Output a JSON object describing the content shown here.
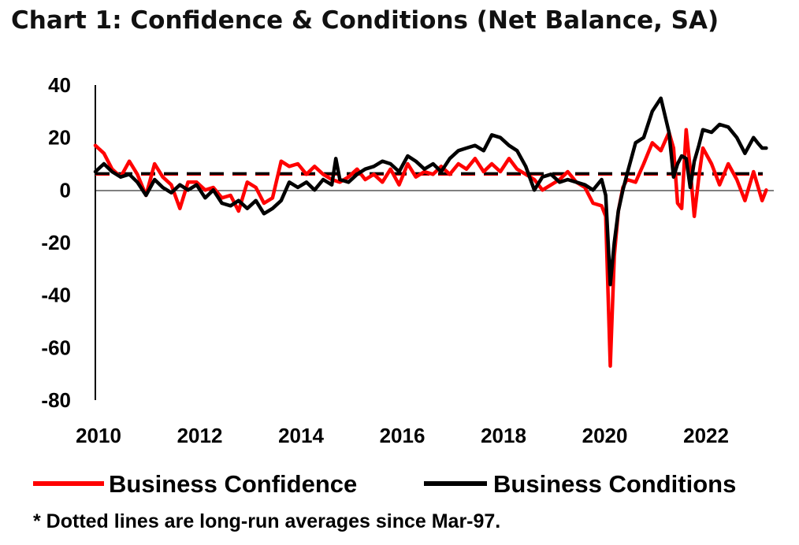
{
  "chart_data": {
    "type": "line",
    "title": "Chart 1: Confidence & Conditions (Net Balance, SA)",
    "footnote": "* Dotted lines are long-run averages since Mar-97.",
    "xlim": [
      2010,
      2023.4
    ],
    "ylim": [
      -80,
      40
    ],
    "y_ticks": [
      "40",
      "20",
      "0",
      "-20",
      "-40",
      "-60",
      "-80"
    ],
    "x_ticks": [
      "2010",
      "2012",
      "2014",
      "2016",
      "2018",
      "2020",
      "2022"
    ],
    "grid": false,
    "legend_position": "bottom",
    "series": [
      {
        "name": "Business Confidence",
        "color": "#ff0000",
        "long_run_average": 6,
        "x": [
          2010.0,
          2010.17,
          2010.33,
          2010.5,
          2010.67,
          2010.83,
          2011.0,
          2011.17,
          2011.33,
          2011.5,
          2011.67,
          2011.83,
          2012.0,
          2012.17,
          2012.33,
          2012.5,
          2012.67,
          2012.83,
          2013.0,
          2013.17,
          2013.33,
          2013.5,
          2013.67,
          2013.83,
          2014.0,
          2014.17,
          2014.33,
          2014.5,
          2014.67,
          2014.83,
          2015.0,
          2015.17,
          2015.33,
          2015.5,
          2015.67,
          2015.83,
          2016.0,
          2016.17,
          2016.33,
          2016.5,
          2016.67,
          2016.83,
          2017.0,
          2017.17,
          2017.33,
          2017.5,
          2017.67,
          2017.83,
          2018.0,
          2018.17,
          2018.33,
          2018.5,
          2018.67,
          2018.83,
          2019.0,
          2019.17,
          2019.33,
          2019.5,
          2019.67,
          2019.83,
          2020.0,
          2020.08,
          2020.17,
          2020.25,
          2020.33,
          2020.42,
          2020.5,
          2020.67,
          2020.83,
          2021.0,
          2021.17,
          2021.33,
          2021.42,
          2021.5,
          2021.58,
          2021.67,
          2021.75,
          2021.83,
          2021.92,
          2022.0,
          2022.17,
          2022.33,
          2022.5,
          2022.67,
          2022.83,
          2023.0,
          2023.17,
          2023.25
        ],
        "values": [
          17,
          14,
          8,
          5,
          11,
          6,
          -2,
          10,
          5,
          2,
          -7,
          3,
          3,
          0,
          1,
          -3,
          -2,
          -8,
          3,
          1,
          -5,
          -3,
          11,
          9,
          10,
          6,
          9,
          6,
          4,
          3,
          5,
          8,
          4,
          6,
          3,
          8,
          2,
          10,
          5,
          7,
          6,
          9,
          6,
          10,
          8,
          12,
          7,
          10,
          7,
          12,
          8,
          6,
          4,
          0,
          2,
          4,
          7,
          3,
          1,
          -5,
          -6,
          -10,
          -67,
          -25,
          -8,
          1,
          4,
          3,
          10,
          18,
          15,
          22,
          16,
          -5,
          -7,
          23,
          8,
          -10,
          5,
          16,
          10,
          2,
          10,
          4,
          -4,
          7,
          -4,
          0
        ]
      },
      {
        "name": "Business Conditions",
        "color": "#000000",
        "long_run_average": 6,
        "x": [
          2010.0,
          2010.17,
          2010.33,
          2010.5,
          2010.67,
          2010.83,
          2011.0,
          2011.17,
          2011.33,
          2011.5,
          2011.67,
          2011.83,
          2012.0,
          2012.17,
          2012.33,
          2012.5,
          2012.67,
          2012.83,
          2013.0,
          2013.17,
          2013.33,
          2013.5,
          2013.67,
          2013.83,
          2014.0,
          2014.17,
          2014.33,
          2014.5,
          2014.67,
          2014.75,
          2014.83,
          2015.0,
          2015.17,
          2015.33,
          2015.5,
          2015.67,
          2015.83,
          2016.0,
          2016.17,
          2016.33,
          2016.5,
          2016.67,
          2016.83,
          2017.0,
          2017.17,
          2017.33,
          2017.5,
          2017.67,
          2017.83,
          2018.0,
          2018.17,
          2018.33,
          2018.5,
          2018.67,
          2018.83,
          2019.0,
          2019.17,
          2019.33,
          2019.5,
          2019.67,
          2019.83,
          2020.0,
          2020.08,
          2020.17,
          2020.25,
          2020.33,
          2020.42,
          2020.5,
          2020.67,
          2020.83,
          2021.0,
          2021.17,
          2021.33,
          2021.42,
          2021.5,
          2021.58,
          2021.67,
          2021.75,
          2021.83,
          2021.92,
          2022.0,
          2022.17,
          2022.33,
          2022.5,
          2022.67,
          2022.83,
          2023.0,
          2023.08,
          2023.17,
          2023.25
        ],
        "values": [
          7,
          10,
          7,
          5,
          6,
          3,
          -2,
          4,
          1,
          -1,
          2,
          0,
          2,
          -3,
          0,
          -5,
          -6,
          -4,
          -7,
          -4,
          -9,
          -7,
          -4,
          3,
          1,
          3,
          0,
          4,
          2,
          12,
          4,
          3,
          6,
          8,
          9,
          11,
          10,
          7,
          13,
          11,
          8,
          10,
          7,
          12,
          15,
          16,
          17,
          15,
          21,
          20,
          17,
          15,
          9,
          0,
          5,
          6,
          3,
          4,
          3,
          2,
          0,
          4,
          -2,
          -36,
          -20,
          -8,
          0,
          6,
          18,
          20,
          30,
          35,
          22,
          5,
          10,
          13,
          12,
          1,
          11,
          17,
          23,
          22,
          25,
          24,
          20,
          14,
          20,
          18,
          16,
          16
        ]
      }
    ]
  }
}
